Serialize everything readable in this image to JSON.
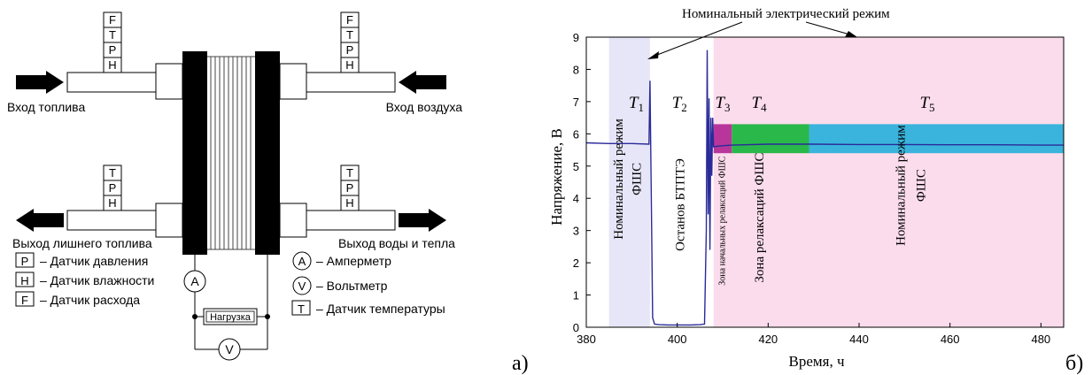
{
  "schematic": {
    "sensor_stacks": {
      "top_left": [
        "F",
        "T",
        "P",
        "H"
      ],
      "top_right": [
        "F",
        "T",
        "P",
        "H"
      ],
      "bottom_left": [
        "T",
        "P",
        "H"
      ],
      "bottom_right": [
        "T",
        "P",
        "H"
      ]
    },
    "labels": {
      "fuel_in": "Вход топлива",
      "air_in": "Вход воздуха",
      "fuel_out": "Выход лишнего топлива",
      "water_heat_out": "Выход воды и тепла",
      "load": "Нагрузка"
    },
    "meters": {
      "ammeter": "A",
      "voltmeter": "V"
    },
    "legend": [
      {
        "symbol": "P",
        "text": "– Датчик давления"
      },
      {
        "symbol": "H",
        "text": "– Датчик влажности"
      },
      {
        "symbol": "F",
        "text": "– Датчик расхода"
      },
      {
        "symbol": "A",
        "text": "– Амперметр"
      },
      {
        "symbol": "V",
        "text": "– Вольтметр"
      },
      {
        "symbol": "T",
        "text": "– Датчик температуры"
      }
    ],
    "panel_label": "а)"
  },
  "chart_data": {
    "type": "line",
    "xlabel": "Время, ч",
    "ylabel": "Напряжение, В",
    "xlim": [
      380,
      485
    ],
    "ylim": [
      0,
      9
    ],
    "x_ticks": [
      380,
      400,
      420,
      440,
      460,
      480
    ],
    "y_ticks": [
      0,
      1,
      2,
      3,
      4,
      5,
      6,
      7,
      8,
      9
    ],
    "annotation": "Номинальный электрический режим",
    "panel_label": "б)",
    "regions": [
      {
        "x": [
          385,
          394
        ],
        "color": "#e6e6f8"
      },
      {
        "x": [
          408,
          485
        ],
        "color": "#fbdcec"
      }
    ],
    "bands": [
      {
        "x": [
          408,
          412
        ],
        "y": [
          5.4,
          6.3
        ],
        "color": "#b8369b"
      },
      {
        "x": [
          412,
          429
        ],
        "y": [
          5.4,
          6.3
        ],
        "color": "#2ab84a"
      },
      {
        "x": [
          429,
          485
        ],
        "y": [
          5.4,
          6.3
        ],
        "color": "#3ab4dc"
      }
    ],
    "periods": [
      {
        "main": "T",
        "sub": "1",
        "x": 391,
        "y": 6.8
      },
      {
        "main": "T",
        "sub": "2",
        "x": 400.5,
        "y": 6.8
      },
      {
        "main": "T",
        "sub": "3",
        "x": 410,
        "y": 6.8
      },
      {
        "main": "T",
        "sub": "4",
        "x": 418,
        "y": 6.8
      },
      {
        "main": "T",
        "sub": "5",
        "x": 455,
        "y": 6.8
      }
    ],
    "zone_labels": [
      {
        "text": "Номинальный режим",
        "x": 388,
        "y": 4.6,
        "size": 15
      },
      {
        "text": "ФШС",
        "x": 392,
        "y": 4.6,
        "size": 15
      },
      {
        "text": "Останов БТПТЭ",
        "x": 401.5,
        "y": 3.8,
        "size": 15
      },
      {
        "text": "Зона начальных релаксаций ФШС",
        "x": 410.5,
        "y": 3.3,
        "size": 10
      },
      {
        "text": "Зона релаксаций ФШС",
        "x": 419,
        "y": 3.4,
        "size": 15
      },
      {
        "text": "Номинальный режим",
        "x": 450,
        "y": 4.4,
        "size": 15
      },
      {
        "text": "ФШС",
        "x": 454.5,
        "y": 4.4,
        "size": 15
      }
    ],
    "series": [
      {
        "color": "#2a2a9a",
        "x": [
          380,
          385,
          390,
          393.8,
          394,
          394.3,
          394.6,
          395,
          396,
          398,
          400,
          403,
          405,
          406,
          406.4,
          406.6,
          406.8,
          407,
          407.2,
          407.4,
          407.6,
          407.8,
          408,
          409,
          412,
          420,
          430,
          440,
          450,
          460,
          470,
          480,
          485
        ],
        "y": [
          5.72,
          5.7,
          5.7,
          5.68,
          7.65,
          4.0,
          0.3,
          0.1,
          0.08,
          0.07,
          0.07,
          0.07,
          0.08,
          0.1,
          3.0,
          8.6,
          3.5,
          7.1,
          2.4,
          6.5,
          4.7,
          6.5,
          5.6,
          5.62,
          5.65,
          5.68,
          5.68,
          5.67,
          5.67,
          5.66,
          5.66,
          5.65,
          5.65
        ]
      }
    ]
  }
}
